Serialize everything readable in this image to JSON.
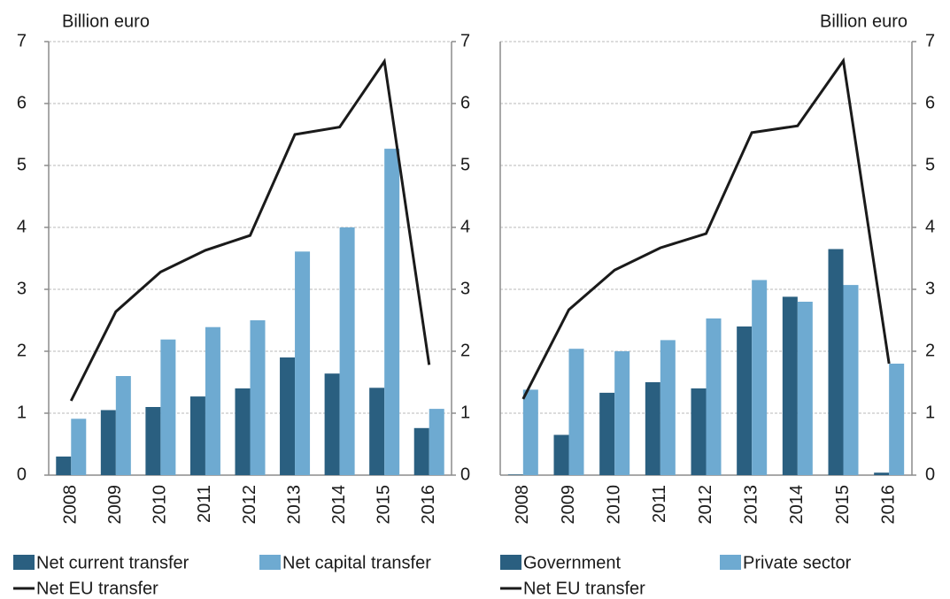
{
  "chart_data": [
    {
      "type": "bar",
      "ylabel": "Billion euro",
      "categories": [
        "2008",
        "2009",
        "2010",
        "2011",
        "2012",
        "2013",
        "2014",
        "2015",
        "2016"
      ],
      "series": [
        {
          "name": "Net current transfer",
          "color": "#2a5f80",
          "values": [
            0.3,
            1.05,
            1.1,
            1.27,
            1.4,
            1.9,
            1.64,
            1.41,
            0.76
          ]
        },
        {
          "name": "Net capital transfer",
          "color": "#6eaad1",
          "values": [
            0.91,
            1.6,
            2.19,
            2.39,
            2.5,
            3.61,
            4.0,
            5.27,
            1.07
          ]
        },
        {
          "name": "Net EU transfer",
          "type": "line",
          "color": "#1a1a1a",
          "axis": "y2",
          "values": [
            1.2,
            2.64,
            3.28,
            3.63,
            3.87,
            5.5,
            5.62,
            6.68,
            1.78
          ]
        }
      ],
      "ylim": [
        0,
        7
      ],
      "yticks": [
        0,
        1,
        2,
        3,
        4,
        5,
        6,
        7
      ],
      "y2lim": [
        0,
        7
      ],
      "y2ticks": [
        0,
        1,
        2,
        3,
        4,
        5,
        6,
        7
      ],
      "grid": true
    },
    {
      "type": "bar",
      "ylabel": "Billion euro",
      "y_axis_position": "right",
      "categories": [
        "2008",
        "2009",
        "2010",
        "2011",
        "2012",
        "2013",
        "2014",
        "2015",
        "2016"
      ],
      "series": [
        {
          "name": "Government",
          "color": "#2a5f80",
          "values": [
            0.01,
            0.65,
            1.33,
            1.5,
            1.4,
            2.4,
            2.88,
            3.65,
            0.04
          ]
        },
        {
          "name": "Private sector",
          "color": "#6eaad1",
          "values": [
            1.38,
            2.04,
            2.0,
            2.18,
            2.53,
            3.15,
            2.8,
            3.07,
            1.8
          ]
        },
        {
          "name": "Net EU transfer",
          "type": "line",
          "color": "#1a1a1a",
          "values": [
            1.23,
            2.67,
            3.31,
            3.67,
            3.9,
            5.53,
            5.64,
            6.69,
            1.8
          ]
        }
      ],
      "ylim": [
        0,
        7
      ],
      "yticks": [
        0,
        1,
        2,
        3,
        4,
        5,
        6,
        7
      ],
      "grid": true
    }
  ]
}
